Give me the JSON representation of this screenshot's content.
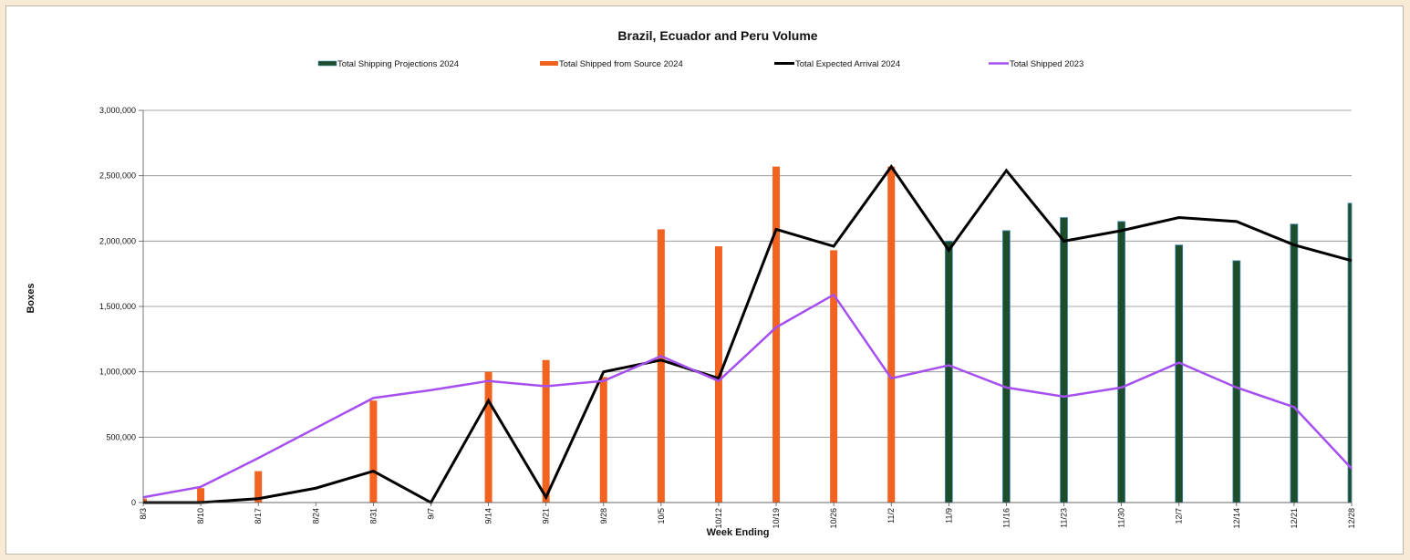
{
  "chart_data": {
    "type": "bar",
    "title": "Brazil, Ecuador and Peru Volume",
    "xlabel": "Week Ending",
    "ylabel": "Boxes",
    "ylim": [
      0,
      3000000
    ],
    "yticks": [
      0,
      500000,
      1000000,
      1500000,
      2000000,
      2500000,
      3000000
    ],
    "ytick_labels": [
      "0",
      "500,000",
      "1,000,000",
      "1,500,000",
      "2,000,000",
      "2,500,000",
      "3,000,000"
    ],
    "grid": true,
    "legend_position": "top",
    "categories": [
      "8/3",
      "8/10",
      "8/17",
      "8/24",
      "8/31",
      "9/7",
      "9/14",
      "9/21",
      "9/28",
      "10/5",
      "10/12",
      "10/19",
      "10/26",
      "11/2",
      "11/9",
      "11/16",
      "11/23",
      "11/30",
      "12/7",
      "12/14",
      "12/21",
      "12/28"
    ],
    "series": [
      {
        "name": "Total Shipping Projections 2024",
        "kind": "bar",
        "color": "#1e4d2b",
        "values": [
          null,
          null,
          null,
          null,
          null,
          null,
          null,
          null,
          null,
          null,
          null,
          null,
          null,
          null,
          2000000,
          2080000,
          2180000,
          2150000,
          1970000,
          1850000,
          2130000,
          2290000
        ]
      },
      {
        "name": "Total Shipped from Source 2024",
        "kind": "bar",
        "color": "#f26322",
        "values": [
          30000,
          110000,
          240000,
          null,
          780000,
          null,
          1000000,
          1090000,
          960000,
          2090000,
          1960000,
          2570000,
          1930000,
          2570000,
          null,
          null,
          null,
          null,
          null,
          null,
          null,
          null
        ]
      },
      {
        "name": "Total Expected Arrival 2024",
        "kind": "line",
        "color": "#000000",
        "values": [
          0,
          0,
          30000,
          110000,
          240000,
          0,
          780000,
          40000,
          1000000,
          1090000,
          950000,
          2090000,
          1960000,
          2570000,
          1930000,
          2540000,
          2000000,
          2080000,
          2180000,
          2150000,
          1970000,
          1850000
        ]
      },
      {
        "name": "Total Shipped 2023",
        "kind": "line",
        "color": "#a64ff0",
        "values": [
          40000,
          120000,
          340000,
          570000,
          800000,
          860000,
          930000,
          890000,
          930000,
          1120000,
          930000,
          1340000,
          1590000,
          950000,
          1050000,
          880000,
          810000,
          880000,
          1070000,
          880000,
          730000,
          260000
        ]
      }
    ]
  }
}
